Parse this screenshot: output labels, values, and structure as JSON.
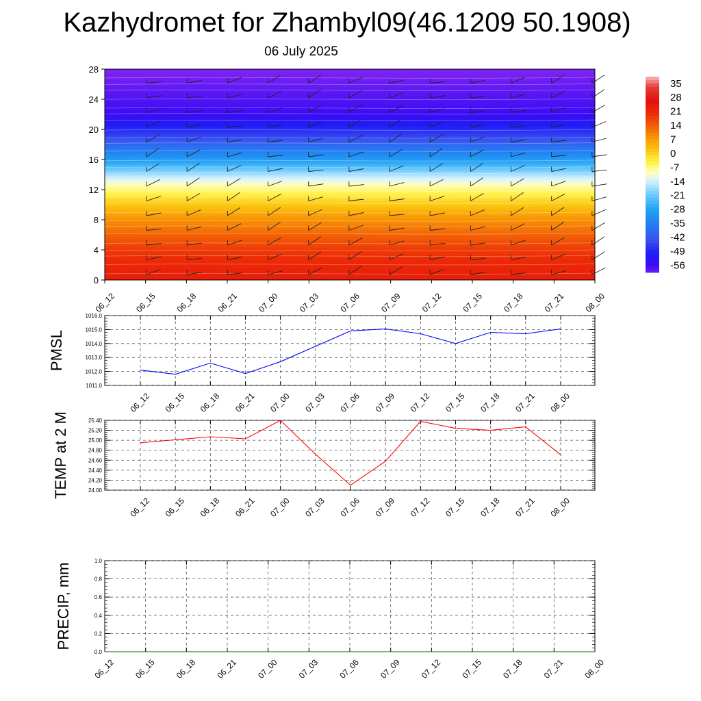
{
  "title": "Kazhydromet for Zhambyl09(46.1209 50.1908)",
  "subtitle": "06 July 2025",
  "time_labels": [
    "06_12",
    "06_15",
    "06_18",
    "06_21",
    "07_00",
    "07_03",
    "07_06",
    "07_09",
    "07_12",
    "07_15",
    "07_18",
    "07_21",
    "08_00"
  ],
  "chart_data": [
    {
      "type": "heatmap",
      "name": "cross-section",
      "x": [
        "06_12",
        "06_15",
        "06_18",
        "06_21",
        "07_00",
        "07_03",
        "07_06",
        "07_09",
        "07_12",
        "07_15",
        "07_18",
        "07_21",
        "08_00"
      ],
      "ylim": [
        0,
        28
      ],
      "yticks": [
        0,
        4,
        8,
        12,
        16,
        20,
        24,
        28
      ],
      "colorbar_labels": [
        "35",
        "28",
        "21",
        "14",
        "7",
        "0",
        "-7",
        "-14",
        "-21",
        "-28",
        "-35",
        "-42",
        "-49",
        "-56"
      ],
      "colorbar_range": [
        -60,
        38
      ],
      "temperature_profile": [
        [
          0,
          23
        ],
        [
          2,
          21
        ],
        [
          4,
          18
        ],
        [
          6,
          13
        ],
        [
          8,
          8
        ],
        [
          10,
          1
        ],
        [
          12,
          -7
        ],
        [
          13.5,
          -14
        ],
        [
          16,
          -30
        ],
        [
          19,
          -45
        ],
        [
          22,
          -56
        ],
        [
          26,
          -60
        ],
        [
          28,
          -62
        ]
      ],
      "wind_barbs": "shown"
    },
    {
      "type": "line",
      "name": "pmsl",
      "ylabel": "PMSL",
      "x": [
        "06_12",
        "06_15",
        "06_18",
        "06_21",
        "07_00",
        "07_03",
        "07_06",
        "07_09",
        "07_12",
        "07_15",
        "07_18",
        "07_21",
        "08_00"
      ],
      "values": [
        1012.1,
        1011.8,
        1012.6,
        1011.85,
        1012.7,
        1013.8,
        1014.9,
        1015.05,
        1014.7,
        1014.0,
        1014.8,
        1014.7,
        1015.05
      ],
      "ylim": [
        1011.0,
        1016.0
      ],
      "yticks": [
        "1011.0",
        "1012.0",
        "1013.0",
        "1014.0",
        "1015.0",
        "1016.0"
      ],
      "color": "#0000ff"
    },
    {
      "type": "line",
      "name": "temp2m",
      "ylabel": "TEMP at 2 M",
      "x": [
        "06_12",
        "06_15",
        "06_18",
        "06_21",
        "07_00",
        "07_03",
        "07_06",
        "07_09",
        "07_12",
        "07_15",
        "07_18",
        "07_21",
        "08_00"
      ],
      "values": [
        24.95,
        25.01,
        25.07,
        25.03,
        25.4,
        24.72,
        24.1,
        24.58,
        25.38,
        25.24,
        25.2,
        25.27,
        24.71
      ],
      "ylim": [
        24.0,
        25.4
      ],
      "yticks": [
        "24.00",
        "24.20",
        "24.40",
        "24.60",
        "24.80",
        "25.00",
        "25.20",
        "25.40"
      ],
      "color": "#ff0000"
    },
    {
      "type": "line",
      "name": "precip",
      "ylabel": "PRECIP, mm",
      "x": [
        "06_12",
        "06_15",
        "06_18",
        "06_21",
        "07_00",
        "07_03",
        "07_06",
        "07_09",
        "07_12",
        "07_15",
        "07_18",
        "07_21",
        "08_00"
      ],
      "values": [
        0,
        0,
        0,
        0,
        0,
        0,
        0,
        0,
        0,
        0,
        0,
        0,
        0
      ],
      "ylim": [
        0,
        1.0
      ],
      "yticks": [
        "0.0",
        "0.2",
        "0.4",
        "0.6",
        "0.8",
        "1.0"
      ],
      "color": "#006400"
    }
  ]
}
